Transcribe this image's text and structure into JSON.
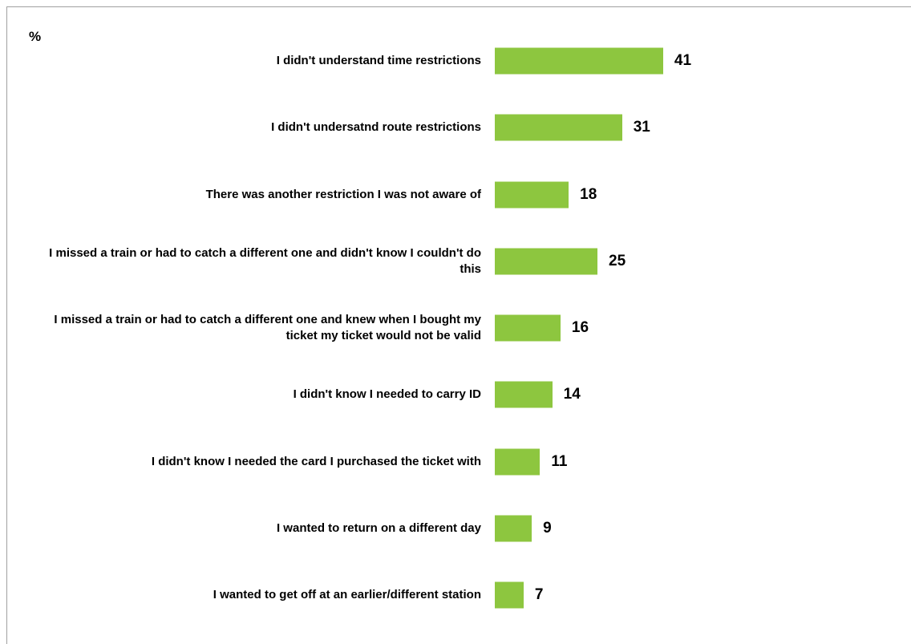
{
  "chart_data": {
    "type": "bar",
    "orientation": "horizontal",
    "unit_label": "%",
    "categories": [
      "I didn't understand time restrictions",
      "I didn't undersatnd route restrictions",
      "There was another restriction I was not aware of",
      "I missed a train or had to catch a different one and didn't know I couldn't do this",
      "I missed a train or had to catch a different one and knew when I bought my ticket my ticket would not be valid",
      "I didn't know I needed to carry ID",
      "I didn't know I needed the card I purchased the ticket with",
      "I wanted to return on a different day",
      "I wanted to get off at an earlier/different station"
    ],
    "values": [
      41,
      31,
      18,
      25,
      16,
      14,
      11,
      9,
      7
    ],
    "color": "#8dc63f"
  }
}
